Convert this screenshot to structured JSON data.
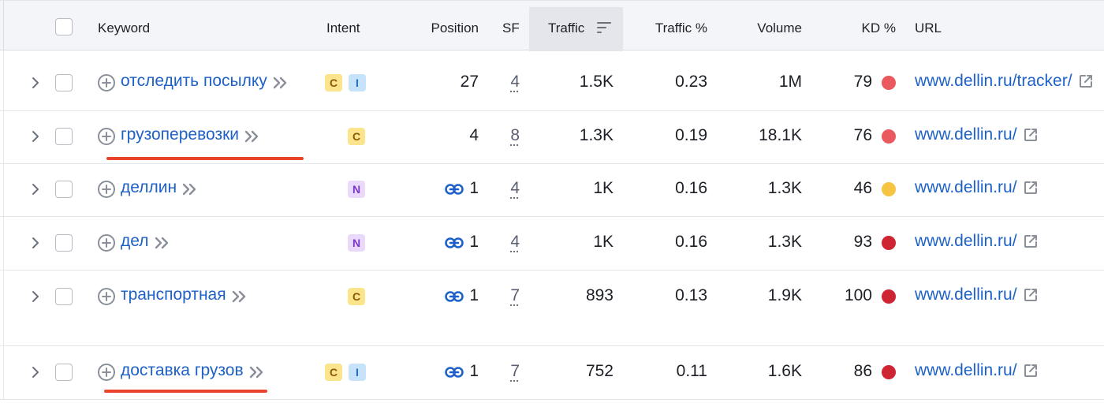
{
  "headers": {
    "keyword": "Keyword",
    "intent": "Intent",
    "position": "Position",
    "sf": "SF",
    "traffic": "Traffic",
    "traffic_pct": "Traffic %",
    "volume": "Volume",
    "kd": "KD %",
    "url": "URL"
  },
  "icons": {
    "expand": "chevron-right-icon",
    "add": "plus-circle-icon",
    "more": "double-chevron-icon",
    "link": "link-icon",
    "external": "external-link-icon",
    "sort": "sort-descending-icon"
  },
  "colors": {
    "kd_red": "#e9595d",
    "kd_darkred": "#cf2532",
    "kd_yellow": "#f4c442",
    "link_blue": "#1d61c7",
    "annotation_red": "#e8442b"
  },
  "rows": [
    {
      "keyword": "отследить посылку",
      "intents": [
        "C",
        "I"
      ],
      "has_link": false,
      "position": "27",
      "sf": "4",
      "traffic": "1.5K",
      "traffic_pct": "0.23",
      "volume": "1M",
      "kd": "79",
      "kd_color": "#e9595d",
      "url": "www.dellin.ru/tracker/",
      "annotated": false
    },
    {
      "keyword": "грузоперевозки",
      "intents": [
        "C"
      ],
      "has_link": false,
      "position": "4",
      "sf": "8",
      "traffic": "1.3K",
      "traffic_pct": "0.19",
      "volume": "18.1K",
      "kd": "76",
      "kd_color": "#e9595d",
      "url": "www.dellin.ru/",
      "annotated": true
    },
    {
      "keyword": "деллин",
      "intents": [
        "N"
      ],
      "has_link": true,
      "position": "1",
      "sf": "4",
      "traffic": "1K",
      "traffic_pct": "0.16",
      "volume": "1.3K",
      "kd": "46",
      "kd_color": "#f4c442",
      "url": "www.dellin.ru/",
      "annotated": false
    },
    {
      "keyword": "дел",
      "intents": [
        "N"
      ],
      "has_link": true,
      "position": "1",
      "sf": "4",
      "traffic": "1K",
      "traffic_pct": "0.16",
      "volume": "1.3K",
      "kd": "93",
      "kd_color": "#cf2532",
      "url": "www.dellin.ru/",
      "annotated": false
    },
    {
      "keyword": "транспортная",
      "intents": [
        "C"
      ],
      "has_link": true,
      "position": "1",
      "sf": "7",
      "traffic": "893",
      "traffic_pct": "0.13",
      "volume": "1.9K",
      "kd": "100",
      "kd_color": "#cf2532",
      "url": "www.dellin.ru/",
      "annotated": false
    },
    {
      "keyword": "доставка грузов",
      "intents": [
        "C",
        "I"
      ],
      "has_link": true,
      "position": "1",
      "sf": "7",
      "traffic": "752",
      "traffic_pct": "0.11",
      "volume": "1.6K",
      "kd": "86",
      "kd_color": "#cf2532",
      "url": "www.dellin.ru/",
      "annotated": true
    }
  ]
}
